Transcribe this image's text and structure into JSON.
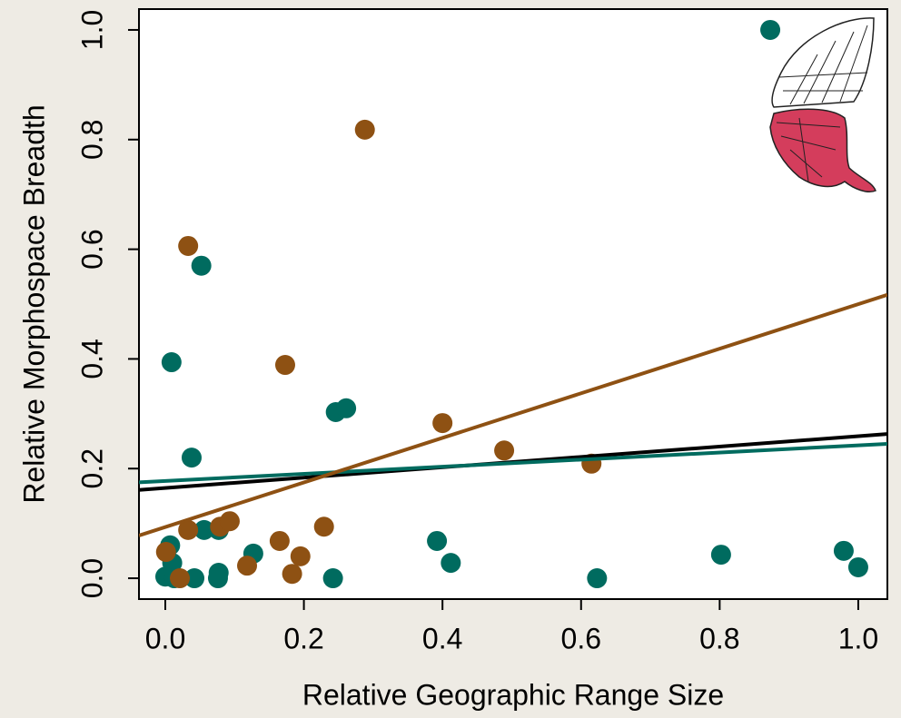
{
  "chart_data": {
    "type": "scatter",
    "x_label": "Relative Geographic Range Size",
    "y_label": "Relative Morphospace Breadth",
    "xlim": [
      -0.038,
      1.042
    ],
    "ylim": [
      -0.038,
      1.038
    ],
    "xticks": [
      {
        "value": 0,
        "label": "0.0"
      },
      0.2,
      0.4,
      0.6,
      0.8,
      {
        "value": 1,
        "label": "1.0"
      }
    ],
    "yticks": [
      {
        "value": 0,
        "label": "0.0"
      },
      0.2,
      0.4,
      0.6,
      0.8,
      {
        "value": 1,
        "label": "1.0"
      }
    ],
    "series": [
      {
        "mode": "points",
        "color": "#006b5f",
        "x": [
          0.873,
          0.052,
          0.009,
          0.038,
          0.246,
          0.261,
          0.007,
          0.01,
          0.0,
          0.013,
          0.056,
          0.077,
          0.042,
          0.077,
          0.076,
          0.127,
          0.242,
          0.392,
          0.412,
          0.623,
          0.802,
          0.979,
          1.0
        ],
        "values": [
          1.0,
          0.57,
          0.394,
          0.22,
          0.303,
          0.31,
          0.06,
          0.028,
          0.003,
          0.0,
          0.088,
          0.088,
          0.0,
          0.01,
          0.0,
          0.045,
          0.0,
          0.068,
          0.028,
          0.0,
          0.043,
          0.05,
          0.02
        ]
      },
      {
        "mode": "points",
        "color": "#8e5113",
        "x": [
          0.288,
          0.033,
          0.173,
          0.4,
          0.489,
          0.615,
          0.001,
          0.033,
          0.021,
          0.079,
          0.093,
          0.118,
          0.165,
          0.183,
          0.195,
          0.229
        ],
        "values": [
          0.818,
          0.606,
          0.389,
          0.283,
          0.233,
          0.209,
          0.048,
          0.088,
          0.0,
          0.094,
          0.104,
          0.023,
          0.068,
          0.008,
          0.04,
          0.094
        ]
      },
      {
        "mode": "line",
        "color": "#000000",
        "x": [
          -0.038,
          1.042
        ],
        "values": [
          0.161,
          0.263
        ]
      },
      {
        "mode": "line",
        "color": "#006b5f",
        "x": [
          -0.038,
          1.042
        ],
        "values": [
          0.175,
          0.245
        ]
      },
      {
        "mode": "line",
        "color": "#8e5113",
        "x": [
          -0.038,
          1.042
        ],
        "values": [
          0.078,
          0.517
        ]
      }
    ]
  }
}
